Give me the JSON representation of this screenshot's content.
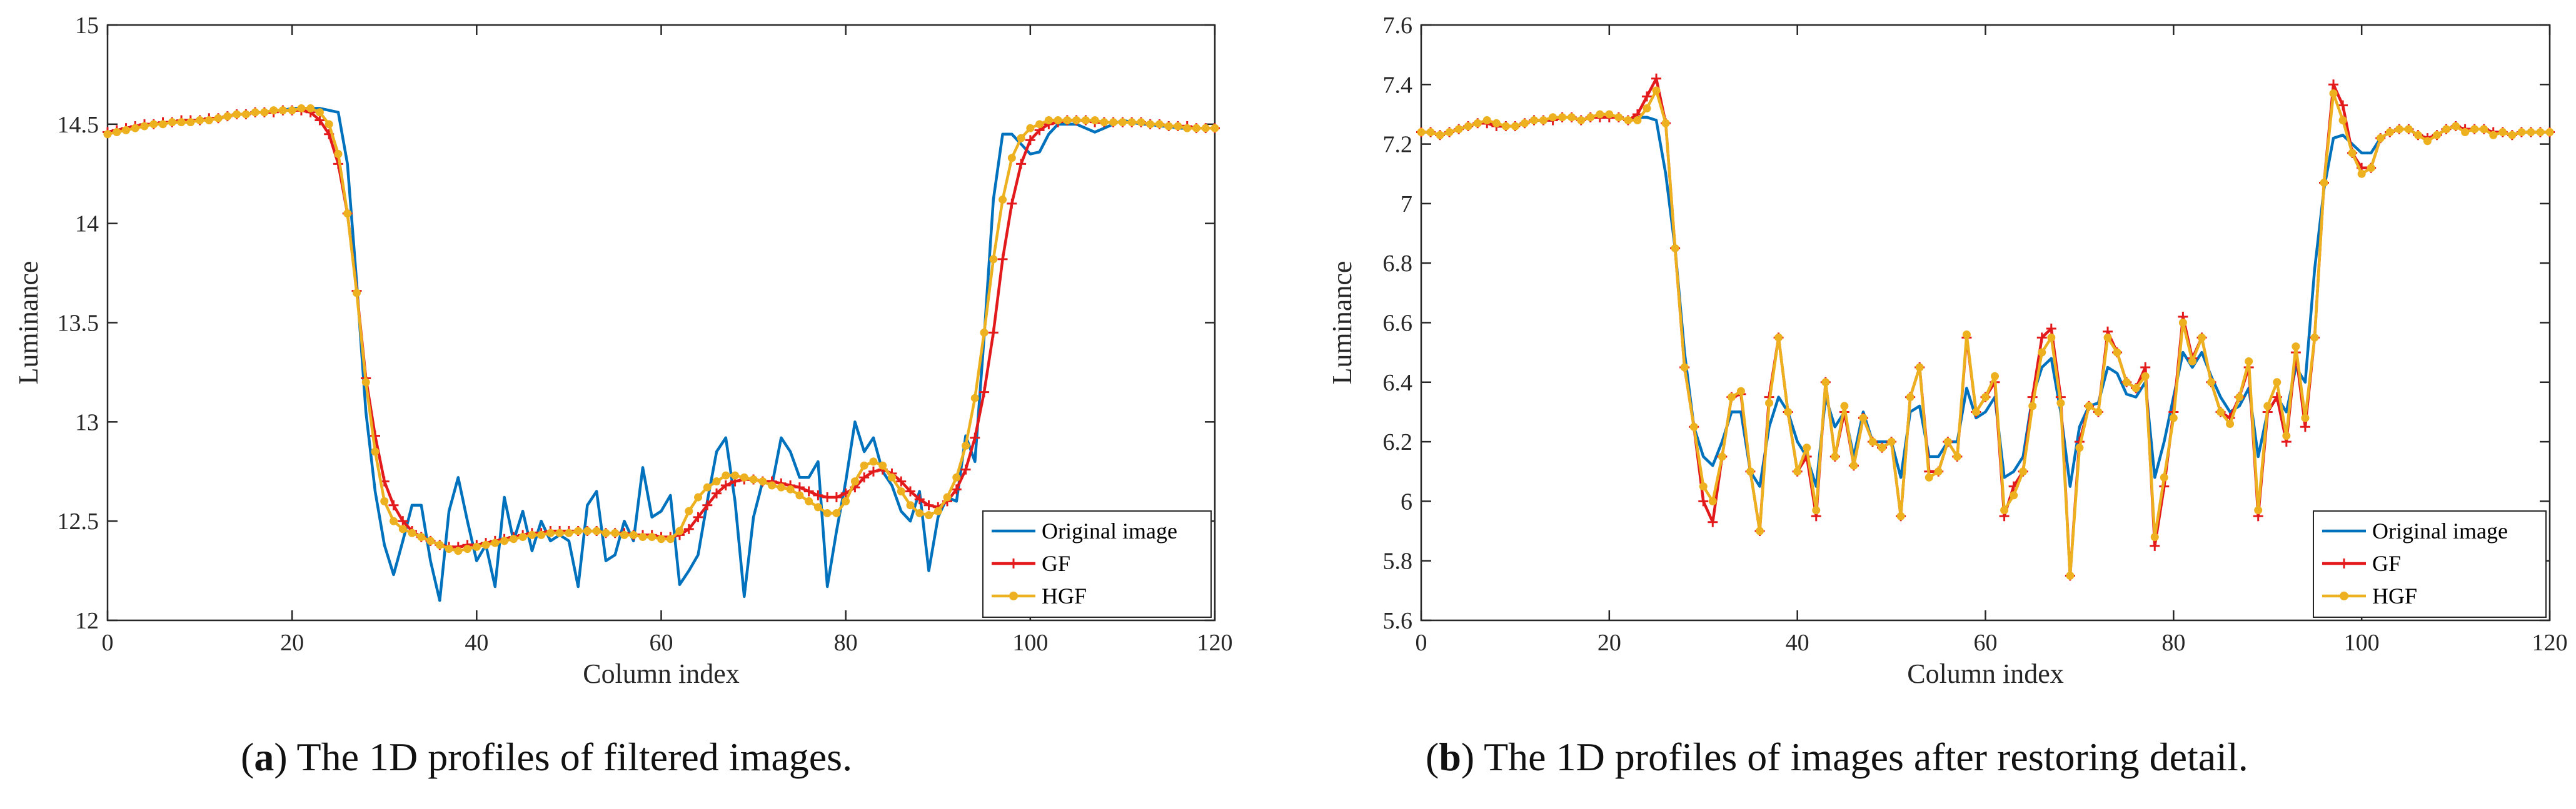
{
  "chart_data": [
    {
      "type": "line",
      "caption_label": "a",
      "caption_text": "The 1D profiles of filtered images.",
      "xlabel": "Column index",
      "ylabel": "Luminance",
      "xlim": [
        0,
        120
      ],
      "ylim": [
        12,
        15
      ],
      "xticks": [
        0,
        20,
        40,
        60,
        80,
        100,
        120
      ],
      "yticks": [
        12,
        12.5,
        13,
        13.5,
        14,
        14.5,
        15
      ],
      "legend": [
        "Original image",
        "GF",
        "HGF"
      ],
      "legend_position": "bottom-right",
      "x": [
        0,
        1,
        2,
        3,
        4,
        5,
        6,
        7,
        8,
        9,
        10,
        11,
        12,
        13,
        14,
        15,
        16,
        17,
        18,
        19,
        20,
        21,
        22,
        23,
        24,
        25,
        26,
        27,
        28,
        29,
        30,
        31,
        32,
        33,
        34,
        35,
        36,
        37,
        38,
        39,
        40,
        41,
        42,
        43,
        44,
        45,
        46,
        47,
        48,
        49,
        50,
        51,
        52,
        53,
        54,
        55,
        56,
        57,
        58,
        59,
        60,
        61,
        62,
        63,
        64,
        65,
        66,
        67,
        68,
        69,
        70,
        71,
        72,
        73,
        74,
        75,
        76,
        77,
        78,
        79,
        80,
        81,
        82,
        83,
        84,
        85,
        86,
        87,
        88,
        89,
        90,
        91,
        92,
        93,
        94,
        95,
        96,
        97,
        98,
        99,
        100,
        101,
        102,
        103,
        104,
        105,
        106,
        107,
        108,
        109,
        110,
        111,
        112,
        113,
        114,
        115,
        116,
        117,
        118,
        119,
        120
      ],
      "series": [
        {
          "name": "Original image",
          "color": "#0072BD",
          "marker": "none",
          "values": [
            14.46,
            14.47,
            14.48,
            14.49,
            14.5,
            14.5,
            14.51,
            14.51,
            14.52,
            14.52,
            14.52,
            14.53,
            14.53,
            14.54,
            14.55,
            14.55,
            14.56,
            14.56,
            14.57,
            14.57,
            14.58,
            14.58,
            14.58,
            14.58,
            14.57,
            14.56,
            14.3,
            13.7,
            13.05,
            12.65,
            12.38,
            12.23,
            12.4,
            12.58,
            12.58,
            12.3,
            12.1,
            12.55,
            12.72,
            12.5,
            12.3,
            12.38,
            12.17,
            12.62,
            12.4,
            12.55,
            12.35,
            12.5,
            12.4,
            12.43,
            12.4,
            12.17,
            12.58,
            12.65,
            12.3,
            12.33,
            12.5,
            12.4,
            12.77,
            12.52,
            12.55,
            12.63,
            12.18,
            12.25,
            12.33,
            12.6,
            12.85,
            12.92,
            12.6,
            12.12,
            12.52,
            12.7,
            12.68,
            12.92,
            12.85,
            12.72,
            12.72,
            12.8,
            12.17,
            12.45,
            12.7,
            13.0,
            12.85,
            12.92,
            12.75,
            12.68,
            12.55,
            12.5,
            12.65,
            12.25,
            12.52,
            12.62,
            12.6,
            12.93,
            12.8,
            13.43,
            14.12,
            14.45,
            14.45,
            14.4,
            14.35,
            14.36,
            14.45,
            14.5,
            14.5,
            14.5,
            14.48,
            14.46,
            14.48,
            14.5,
            14.52,
            14.51,
            14.5,
            14.5,
            14.49,
            14.49,
            14.48,
            14.48,
            14.48,
            14.48,
            14.48
          ]
        },
        {
          "name": "GF",
          "color": "#E31A1C",
          "marker": "plus",
          "values": [
            14.46,
            14.47,
            14.48,
            14.49,
            14.5,
            14.5,
            14.51,
            14.51,
            14.52,
            14.52,
            14.52,
            14.53,
            14.53,
            14.54,
            14.55,
            14.55,
            14.56,
            14.56,
            14.56,
            14.57,
            14.57,
            14.57,
            14.56,
            14.52,
            14.45,
            14.3,
            14.05,
            13.66,
            13.22,
            12.93,
            12.7,
            12.58,
            12.5,
            12.45,
            12.42,
            12.4,
            12.38,
            12.37,
            12.37,
            12.38,
            12.38,
            12.39,
            12.4,
            12.41,
            12.42,
            12.43,
            12.44,
            12.44,
            12.45,
            12.45,
            12.45,
            12.45,
            12.45,
            12.45,
            12.44,
            12.44,
            12.44,
            12.43,
            12.43,
            12.43,
            12.42,
            12.42,
            12.43,
            12.46,
            12.52,
            12.58,
            12.64,
            12.68,
            12.7,
            12.71,
            12.71,
            12.7,
            12.7,
            12.69,
            12.68,
            12.67,
            12.65,
            12.63,
            12.62,
            12.62,
            12.64,
            12.67,
            12.72,
            12.75,
            12.76,
            12.74,
            12.7,
            12.65,
            12.61,
            12.58,
            12.57,
            12.6,
            12.66,
            12.76,
            12.92,
            13.15,
            13.45,
            13.82,
            14.1,
            14.3,
            14.42,
            14.47,
            14.5,
            14.51,
            14.52,
            14.52,
            14.52,
            14.51,
            14.51,
            14.51,
            14.51,
            14.51,
            14.51,
            14.5,
            14.5,
            14.49,
            14.49,
            14.49,
            14.48,
            14.48,
            14.48
          ]
        },
        {
          "name": "HGF",
          "color": "#EDB120",
          "marker": "dot",
          "values": [
            14.45,
            14.46,
            14.47,
            14.48,
            14.49,
            14.5,
            14.5,
            14.51,
            14.51,
            14.51,
            14.52,
            14.52,
            14.53,
            14.54,
            14.55,
            14.55,
            14.56,
            14.56,
            14.57,
            14.57,
            14.57,
            14.58,
            14.58,
            14.56,
            14.5,
            14.35,
            14.05,
            13.65,
            13.2,
            12.85,
            12.6,
            12.5,
            12.46,
            12.44,
            12.42,
            12.4,
            12.38,
            12.36,
            12.35,
            12.36,
            12.37,
            12.38,
            12.39,
            12.4,
            12.41,
            12.42,
            12.43,
            12.43,
            12.44,
            12.44,
            12.44,
            12.45,
            12.45,
            12.45,
            12.44,
            12.44,
            12.43,
            12.43,
            12.42,
            12.42,
            12.41,
            12.41,
            12.45,
            12.55,
            12.62,
            12.67,
            12.7,
            12.73,
            12.73,
            12.72,
            12.71,
            12.7,
            12.68,
            12.67,
            12.66,
            12.63,
            12.6,
            12.57,
            12.54,
            12.54,
            12.6,
            12.7,
            12.78,
            12.8,
            12.78,
            12.72,
            12.65,
            12.58,
            12.54,
            12.53,
            12.55,
            12.62,
            12.72,
            12.88,
            13.12,
            13.45,
            13.82,
            14.12,
            14.33,
            14.43,
            14.48,
            14.5,
            14.52,
            14.52,
            14.52,
            14.52,
            14.52,
            14.52,
            14.51,
            14.51,
            14.51,
            14.51,
            14.51,
            14.5,
            14.5,
            14.49,
            14.49,
            14.48,
            14.48,
            14.48,
            14.48
          ]
        }
      ]
    },
    {
      "type": "line",
      "caption_label": "b",
      "caption_text": "The 1D profiles of images after restoring detail.",
      "xlabel": "Column index",
      "ylabel": "Luminance",
      "xlim": [
        0,
        120
      ],
      "ylim": [
        5.6,
        7.6
      ],
      "xticks": [
        0,
        20,
        40,
        60,
        80,
        100,
        120
      ],
      "yticks": [
        5.6,
        5.8,
        6,
        6.2,
        6.4,
        6.6,
        6.8,
        7,
        7.2,
        7.4,
        7.6
      ],
      "legend": [
        "Original image",
        "GF",
        "HGF"
      ],
      "legend_position": "bottom-right",
      "x": [
        0,
        1,
        2,
        3,
        4,
        5,
        6,
        7,
        8,
        9,
        10,
        11,
        12,
        13,
        14,
        15,
        16,
        17,
        18,
        19,
        20,
        21,
        22,
        23,
        24,
        25,
        26,
        27,
        28,
        29,
        30,
        31,
        32,
        33,
        34,
        35,
        36,
        37,
        38,
        39,
        40,
        41,
        42,
        43,
        44,
        45,
        46,
        47,
        48,
        49,
        50,
        51,
        52,
        53,
        54,
        55,
        56,
        57,
        58,
        59,
        60,
        61,
        62,
        63,
        64,
        65,
        66,
        67,
        68,
        69,
        70,
        71,
        72,
        73,
        74,
        75,
        76,
        77,
        78,
        79,
        80,
        81,
        82,
        83,
        84,
        85,
        86,
        87,
        88,
        89,
        90,
        91,
        92,
        93,
        94,
        95,
        96,
        97,
        98,
        99,
        100,
        101,
        102,
        103,
        104,
        105,
        106,
        107,
        108,
        109,
        110,
        111,
        112,
        113,
        114,
        115,
        116,
        117,
        118,
        119,
        120
      ],
      "series": [
        {
          "name": "Original image",
          "color": "#0072BD",
          "marker": "none",
          "values": [
            7.24,
            7.24,
            7.23,
            7.24,
            7.25,
            7.26,
            7.27,
            7.27,
            7.26,
            7.26,
            7.26,
            7.27,
            7.28,
            7.28,
            7.28,
            7.29,
            7.29,
            7.28,
            7.29,
            7.29,
            7.29,
            7.29,
            7.28,
            7.29,
            7.29,
            7.28,
            7.1,
            6.85,
            6.5,
            6.25,
            6.15,
            6.12,
            6.2,
            6.3,
            6.3,
            6.1,
            6.05,
            6.25,
            6.35,
            6.3,
            6.2,
            6.15,
            6.05,
            6.35,
            6.25,
            6.3,
            6.15,
            6.3,
            6.2,
            6.2,
            6.2,
            6.08,
            6.3,
            6.32,
            6.15,
            6.15,
            6.2,
            6.2,
            6.38,
            6.28,
            6.3,
            6.35,
            6.08,
            6.1,
            6.15,
            6.35,
            6.45,
            6.48,
            6.3,
            6.05,
            6.25,
            6.32,
            6.33,
            6.45,
            6.43,
            6.36,
            6.35,
            6.4,
            6.08,
            6.2,
            6.35,
            6.5,
            6.45,
            6.5,
            6.42,
            6.35,
            6.3,
            6.32,
            6.38,
            6.15,
            6.3,
            6.35,
            6.3,
            6.45,
            6.4,
            6.78,
            7.05,
            7.22,
            7.23,
            7.2,
            7.17,
            7.17,
            7.22,
            7.24,
            7.25,
            7.25,
            7.23,
            7.22,
            7.23,
            7.25,
            7.26,
            7.25,
            7.25,
            7.25,
            7.24,
            7.24,
            7.23,
            7.24,
            7.24,
            7.24,
            7.24
          ]
        },
        {
          "name": "GF",
          "color": "#E31A1C",
          "marker": "plus",
          "values": [
            7.24,
            7.24,
            7.23,
            7.24,
            7.25,
            7.26,
            7.27,
            7.27,
            7.26,
            7.26,
            7.26,
            7.27,
            7.28,
            7.28,
            7.28,
            7.29,
            7.29,
            7.28,
            7.29,
            7.29,
            7.29,
            7.29,
            7.28,
            7.3,
            7.36,
            7.42,
            7.27,
            6.85,
            6.45,
            6.25,
            6.0,
            5.93,
            6.15,
            6.35,
            6.36,
            6.1,
            5.9,
            6.35,
            6.55,
            6.3,
            6.1,
            6.15,
            5.95,
            6.4,
            6.15,
            6.3,
            6.12,
            6.28,
            6.2,
            6.18,
            6.2,
            5.95,
            6.35,
            6.45,
            6.1,
            6.1,
            6.2,
            6.15,
            6.55,
            6.3,
            6.35,
            6.4,
            5.95,
            6.05,
            6.1,
            6.35,
            6.55,
            6.58,
            6.35,
            5.75,
            6.2,
            6.32,
            6.3,
            6.57,
            6.5,
            6.4,
            6.38,
            6.45,
            5.85,
            6.05,
            6.3,
            6.62,
            6.48,
            6.55,
            6.4,
            6.3,
            6.28,
            6.35,
            6.45,
            5.95,
            6.3,
            6.35,
            6.2,
            6.5,
            6.25,
            6.55,
            7.07,
            7.4,
            7.33,
            7.17,
            7.12,
            7.12,
            7.22,
            7.24,
            7.25,
            7.25,
            7.23,
            7.22,
            7.23,
            7.25,
            7.26,
            7.25,
            7.25,
            7.25,
            7.24,
            7.24,
            7.23,
            7.24,
            7.24,
            7.24,
            7.24
          ]
        },
        {
          "name": "HGF",
          "color": "#EDB120",
          "marker": "dot",
          "values": [
            7.24,
            7.24,
            7.23,
            7.24,
            7.25,
            7.26,
            7.27,
            7.28,
            7.27,
            7.26,
            7.26,
            7.27,
            7.28,
            7.28,
            7.29,
            7.29,
            7.29,
            7.28,
            7.29,
            7.3,
            7.3,
            7.29,
            7.28,
            7.28,
            7.32,
            7.38,
            7.27,
            6.85,
            6.45,
            6.25,
            6.05,
            6.0,
            6.15,
            6.35,
            6.37,
            6.1,
            5.9,
            6.33,
            6.55,
            6.3,
            6.1,
            6.18,
            5.97,
            6.4,
            6.15,
            6.32,
            6.12,
            6.28,
            6.2,
            6.18,
            6.2,
            5.95,
            6.35,
            6.45,
            6.08,
            6.1,
            6.2,
            6.15,
            6.56,
            6.3,
            6.35,
            6.42,
            5.97,
            6.02,
            6.1,
            6.32,
            6.5,
            6.55,
            6.33,
            5.75,
            6.18,
            6.32,
            6.3,
            6.55,
            6.5,
            6.4,
            6.38,
            6.42,
            5.88,
            6.08,
            6.28,
            6.6,
            6.47,
            6.55,
            6.4,
            6.3,
            6.26,
            6.35,
            6.47,
            5.97,
            6.32,
            6.4,
            6.22,
            6.52,
            6.28,
            6.55,
            7.07,
            7.37,
            7.28,
            7.17,
            7.1,
            7.12,
            7.22,
            7.24,
            7.25,
            7.25,
            7.23,
            7.21,
            7.23,
            7.25,
            7.26,
            7.24,
            7.25,
            7.25,
            7.23,
            7.24,
            7.23,
            7.24,
            7.24,
            7.24,
            7.24
          ]
        }
      ]
    }
  ]
}
